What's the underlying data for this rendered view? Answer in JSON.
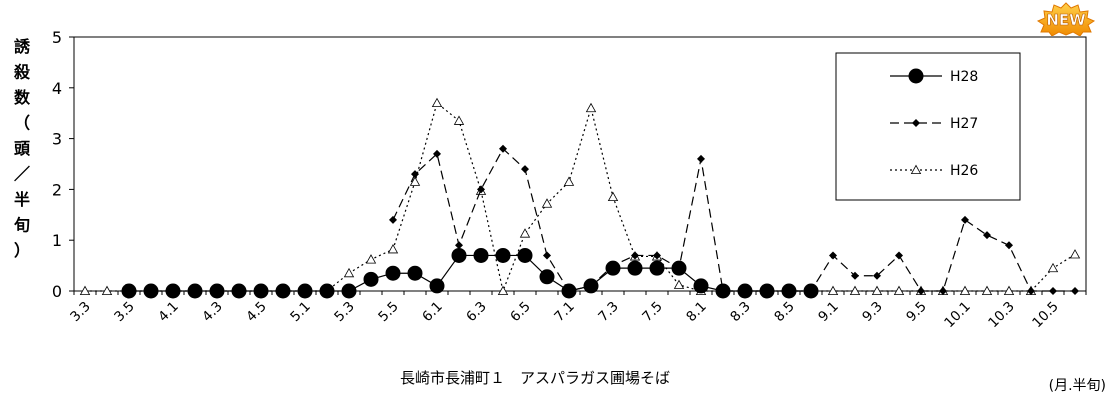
{
  "badge": {
    "label": "NEW"
  },
  "chart_data": {
    "type": "line",
    "title": "",
    "ylabel": "誘殺数（頭／半旬）",
    "ylabel_chars": [
      "誘",
      "殺",
      "数",
      "（",
      "頭",
      "／",
      "半",
      "旬",
      "）"
    ],
    "xlabel": "長崎市長浦町１　アスパラガス圃場そば",
    "xunit": "(月.半旬)",
    "ylim": [
      0,
      5
    ],
    "yticks": [
      "0",
      "1",
      "2",
      "3",
      "4",
      "5"
    ],
    "grid": false,
    "legend_position": "top-right",
    "x": [
      "3.3",
      "3.4",
      "3.5",
      "3.6",
      "4.1",
      "4.2",
      "4.3",
      "4.4",
      "4.5",
      "4.6",
      "5.1",
      "5.2",
      "5.3",
      "5.4",
      "5.5",
      "5.6",
      "6.1",
      "6.2",
      "6.3",
      "6.4",
      "6.5",
      "6.6",
      "7.1",
      "7.2",
      "7.3",
      "7.4",
      "7.5",
      "7.6",
      "8.1",
      "8.2",
      "8.3",
      "8.4",
      "8.5",
      "8.6",
      "9.1",
      "9.2",
      "9.3",
      "9.4",
      "9.5",
      "9.6",
      "10.1",
      "10.2",
      "10.3",
      "10.4",
      "10.5",
      "10.6"
    ],
    "xticks_shown": [
      "3.3",
      "3.5",
      "4.1",
      "4.3",
      "4.5",
      "5.1",
      "5.3",
      "5.5",
      "6.1",
      "6.3",
      "6.5",
      "7.1",
      "7.3",
      "7.5",
      "8.1",
      "8.3",
      "8.5",
      "9.1",
      "9.3",
      "9.5",
      "10.1",
      "10.3",
      "10.5"
    ],
    "series": [
      {
        "name": "H28",
        "color": "#000000",
        "marker": "circle",
        "dash": "solid",
        "values": [
          null,
          null,
          0,
          0,
          0,
          0,
          0,
          0,
          0,
          0,
          0,
          0,
          0,
          0.23,
          0.35,
          0.35,
          0.1,
          0.7,
          0.7,
          0.7,
          0.7,
          0.28,
          0,
          0.1,
          0.45,
          0.45,
          0.45,
          0.45,
          0.1,
          0,
          0,
          0,
          0,
          0,
          null,
          null,
          null,
          null,
          null,
          null,
          null,
          null,
          null,
          null,
          null,
          null
        ]
      },
      {
        "name": "H27",
        "color": "#000000",
        "marker": "diamond",
        "dash": "dashed",
        "values": [
          null,
          null,
          null,
          null,
          null,
          null,
          null,
          null,
          null,
          null,
          null,
          null,
          null,
          null,
          1.4,
          2.3,
          2.7,
          0.9,
          2.0,
          2.8,
          2.4,
          0.7,
          0,
          0.1,
          0.5,
          0.7,
          0.7,
          0.45,
          2.6,
          0,
          0,
          0,
          0,
          0,
          0.7,
          0.3,
          0.3,
          0.7,
          0,
          0,
          1.4,
          1.1,
          0.9,
          0,
          0,
          0
        ]
      },
      {
        "name": "H26",
        "color": "#000000",
        "marker": "triangle",
        "dash": "dotted",
        "values": [
          0,
          0,
          0,
          0,
          0,
          0,
          0,
          0,
          0,
          0,
          0,
          0,
          0.35,
          0.62,
          0.82,
          2.15,
          3.7,
          3.35,
          1.97,
          0,
          1.13,
          1.72,
          2.15,
          3.6,
          1.85,
          0.68,
          0.68,
          0.12,
          0,
          0,
          0,
          0,
          0,
          0,
          0,
          0,
          0,
          0,
          0,
          0,
          0,
          0,
          0,
          0,
          0.45,
          0.72
        ]
      }
    ]
  }
}
